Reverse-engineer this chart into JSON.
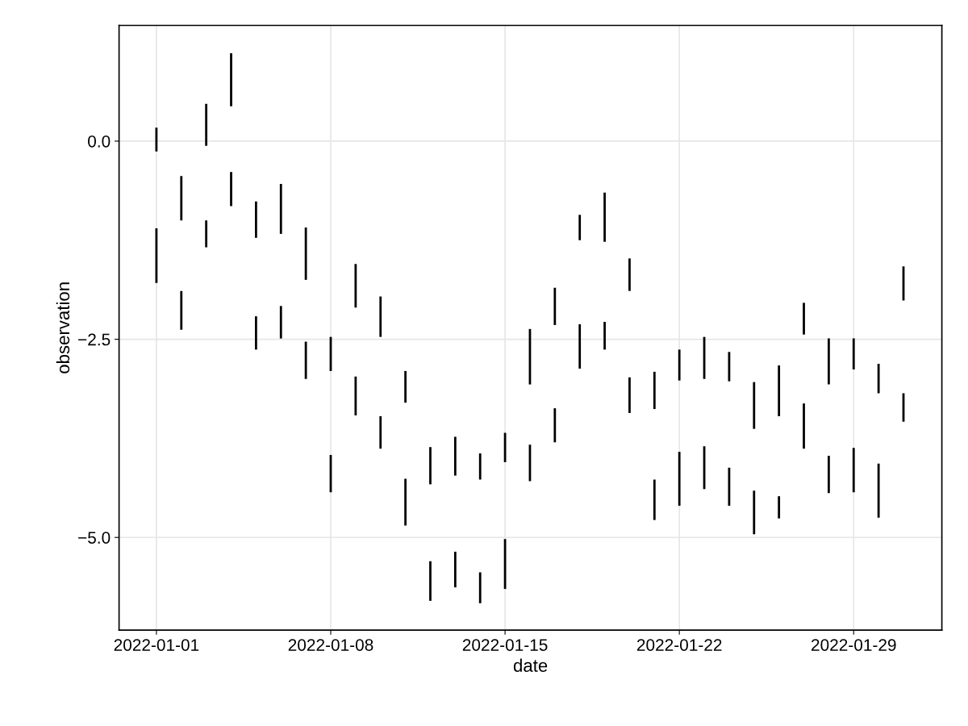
{
  "chart_data": {
    "type": "bar",
    "xlabel": "date",
    "ylabel": "observation",
    "x": [
      "2022-01-01",
      "2022-01-02",
      "2022-01-03",
      "2022-01-04",
      "2022-01-05",
      "2022-01-06",
      "2022-01-07",
      "2022-01-08",
      "2022-01-09",
      "2022-01-10",
      "2022-01-11",
      "2022-01-12",
      "2022-01-13",
      "2022-01-14",
      "2022-01-15",
      "2022-01-16",
      "2022-01-17",
      "2022-01-18",
      "2022-01-19",
      "2022-01-20",
      "2022-01-21",
      "2022-01-22",
      "2022-01-23",
      "2022-01-24",
      "2022-01-25",
      "2022-01-26",
      "2022-01-27",
      "2022-01-28",
      "2022-01-29",
      "2022-01-30",
      "2022-01-31"
    ],
    "series": [
      {
        "color": "#000000",
        "base": [
          -0.13,
          -1.0,
          -0.06,
          0.44,
          -1.22,
          -1.17,
          -1.75,
          -2.9,
          -2.1,
          -2.47,
          -3.3,
          -4.33,
          -4.22,
          -4.27,
          -4.05,
          -3.07,
          -2.32,
          -1.25,
          -1.27,
          -1.89,
          -3.38,
          -3.02,
          -3.0,
          -3.03,
          -3.63,
          -3.47,
          -2.44,
          -3.07,
          -2.88,
          -3.18,
          -2.01
        ],
        "values": [
          0.3,
          0.56,
          0.53,
          0.67,
          0.46,
          0.63,
          0.66,
          0.43,
          0.55,
          0.51,
          0.4,
          0.47,
          0.49,
          0.33,
          0.37,
          0.7,
          0.47,
          0.32,
          0.62,
          0.41,
          0.47,
          0.39,
          0.53,
          0.37,
          0.59,
          0.64,
          0.4,
          0.58,
          0.39,
          0.37,
          0.43
        ]
      },
      {
        "color": "#000000",
        "base": [
          -1.79,
          -2.38,
          -1.34,
          -0.82,
          -2.63,
          -2.49,
          -3.0,
          -4.43,
          -3.46,
          -3.88,
          -4.85,
          -5.8,
          -5.63,
          -5.83,
          -5.65,
          -4.29,
          -3.8,
          -2.87,
          -2.63,
          -3.43,
          -4.78,
          -4.6,
          -4.39,
          -4.6,
          -4.96,
          -4.76,
          -3.88,
          -4.44,
          -4.43,
          -4.75,
          -3.54
        ],
        "values": [
          0.69,
          0.49,
          0.34,
          0.43,
          0.42,
          0.41,
          0.47,
          0.47,
          0.49,
          0.41,
          0.59,
          0.5,
          0.45,
          0.39,
          0.63,
          0.46,
          0.43,
          0.56,
          0.35,
          0.45,
          0.51,
          0.68,
          0.54,
          0.48,
          0.55,
          0.28,
          0.57,
          0.47,
          0.56,
          0.68,
          0.36
        ]
      }
    ],
    "xlim": [
      "2021-12-30T12:00",
      "2022-02-01T13:00"
    ],
    "xticks": [
      "2022-01-01",
      "2022-01-08",
      "2022-01-15",
      "2022-01-22",
      "2022-01-29"
    ],
    "ylim": [
      -6.17,
      1.46
    ],
    "yticks": [
      {
        "value": -5.0,
        "label": "−5.0"
      },
      {
        "value": -2.5,
        "label": "−2.5"
      },
      {
        "value": 0.0,
        "label": "0.0"
      }
    ],
    "grid": true,
    "legend": false
  }
}
